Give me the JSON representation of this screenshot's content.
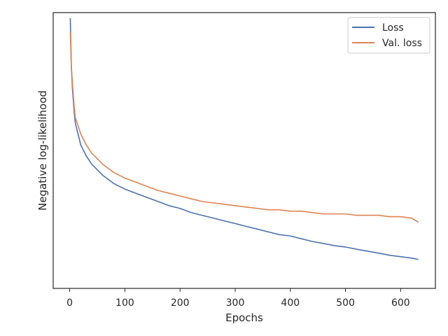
{
  "chart_data": {
    "type": "line",
    "title": "",
    "xlabel": "Epochs",
    "ylabel": "Negative log-likelihood",
    "xlim": [
      -30,
      663
    ],
    "ylim": [
      0,
      1
    ],
    "x_ticks": [
      0,
      100,
      200,
      300,
      400,
      500,
      600
    ],
    "x_tick_labels": [
      "0",
      "100",
      "200",
      "300",
      "400",
      "500",
      "600"
    ],
    "y_ticks_shown": false,
    "grid": false,
    "legend_position": "upper right",
    "colors": {
      "loss": "#4c72b0",
      "val_loss": "#dd8452"
    },
    "series": [
      {
        "name": "Loss",
        "x": [
          1,
          3,
          5,
          8,
          10,
          15,
          20,
          30,
          40,
          50,
          60,
          70,
          80,
          90,
          100,
          120,
          140,
          160,
          180,
          200,
          220,
          240,
          260,
          280,
          300,
          320,
          340,
          360,
          380,
          400,
          420,
          440,
          460,
          480,
          500,
          520,
          540,
          560,
          580,
          600,
          620,
          632
        ],
        "y": [
          0.98,
          0.8,
          0.72,
          0.64,
          0.6,
          0.56,
          0.52,
          0.48,
          0.45,
          0.43,
          0.41,
          0.395,
          0.38,
          0.37,
          0.36,
          0.345,
          0.33,
          0.315,
          0.3,
          0.29,
          0.275,
          0.265,
          0.255,
          0.245,
          0.235,
          0.225,
          0.215,
          0.205,
          0.195,
          0.19,
          0.18,
          0.17,
          0.163,
          0.155,
          0.15,
          0.142,
          0.135,
          0.128,
          0.12,
          0.115,
          0.11,
          0.105
        ]
      },
      {
        "name": "Val. loss",
        "x": [
          1,
          3,
          5,
          8,
          10,
          15,
          20,
          30,
          40,
          50,
          60,
          70,
          80,
          90,
          100,
          120,
          140,
          160,
          180,
          200,
          220,
          240,
          260,
          280,
          300,
          320,
          340,
          360,
          380,
          400,
          420,
          440,
          460,
          480,
          500,
          520,
          540,
          560,
          580,
          600,
          620,
          632
        ],
        "y": [
          0.93,
          0.8,
          0.74,
          0.66,
          0.62,
          0.59,
          0.56,
          0.52,
          0.49,
          0.47,
          0.45,
          0.435,
          0.42,
          0.41,
          0.4,
          0.385,
          0.37,
          0.355,
          0.345,
          0.335,
          0.325,
          0.315,
          0.31,
          0.305,
          0.3,
          0.295,
          0.29,
          0.285,
          0.285,
          0.28,
          0.28,
          0.275,
          0.27,
          0.27,
          0.27,
          0.265,
          0.265,
          0.265,
          0.26,
          0.26,
          0.255,
          0.24
        ]
      }
    ]
  }
}
